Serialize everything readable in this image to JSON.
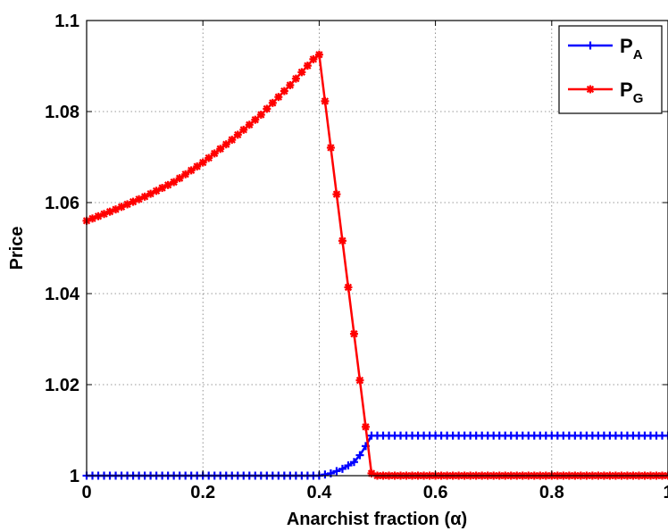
{
  "chart_data": {
    "type": "line",
    "title": "",
    "xlabel": "Anarchist fraction (α)",
    "ylabel": "Price",
    "xlim": [
      0,
      1
    ],
    "ylim": [
      1,
      1.1
    ],
    "x_ticks": [
      0,
      0.2,
      0.4,
      0.6,
      0.8,
      1
    ],
    "x_tick_labels": [
      "0",
      "0.2",
      "0.4",
      "0.6",
      "0.8",
      "1"
    ],
    "y_ticks": [
      1,
      1.02,
      1.04,
      1.06,
      1.08,
      1.1
    ],
    "y_tick_labels": [
      "1",
      "1.02",
      "1.04",
      "1.06",
      "1.08",
      "1.1"
    ],
    "grid": true,
    "legend_position": "top-right",
    "series": [
      {
        "name": "P_A",
        "label_main": "P",
        "label_sub": "A",
        "color": "#0000ff",
        "marker": "plus",
        "points": [
          [
            0,
            1.0
          ],
          [
            0.35,
            1.0
          ],
          [
            0.39,
            1.0
          ],
          [
            0.4,
            1.0
          ],
          [
            0.42,
            1.0005
          ],
          [
            0.44,
            1.0015
          ],
          [
            0.46,
            1.003
          ],
          [
            0.47,
            1.0045
          ],
          [
            0.48,
            1.0065
          ],
          [
            0.49,
            1.0088
          ],
          [
            0.5,
            1.0088
          ],
          [
            1.0,
            1.0088
          ]
        ]
      },
      {
        "name": "P_G",
        "label_main": "P",
        "label_sub": "G",
        "color": "#ff0000",
        "marker": "star",
        "points": [
          [
            0,
            1.056
          ],
          [
            0.05,
            1.0585
          ],
          [
            0.1,
            1.0613
          ],
          [
            0.15,
            1.0645
          ],
          [
            0.2,
            1.0688
          ],
          [
            0.25,
            1.0738
          ],
          [
            0.3,
            1.0793
          ],
          [
            0.35,
            1.0858
          ],
          [
            0.39,
            1.0915
          ],
          [
            0.4,
            1.0925
          ],
          [
            0.49,
            1.0005
          ],
          [
            0.5,
            1.0
          ],
          [
            1.0,
            1.0
          ]
        ]
      }
    ]
  }
}
